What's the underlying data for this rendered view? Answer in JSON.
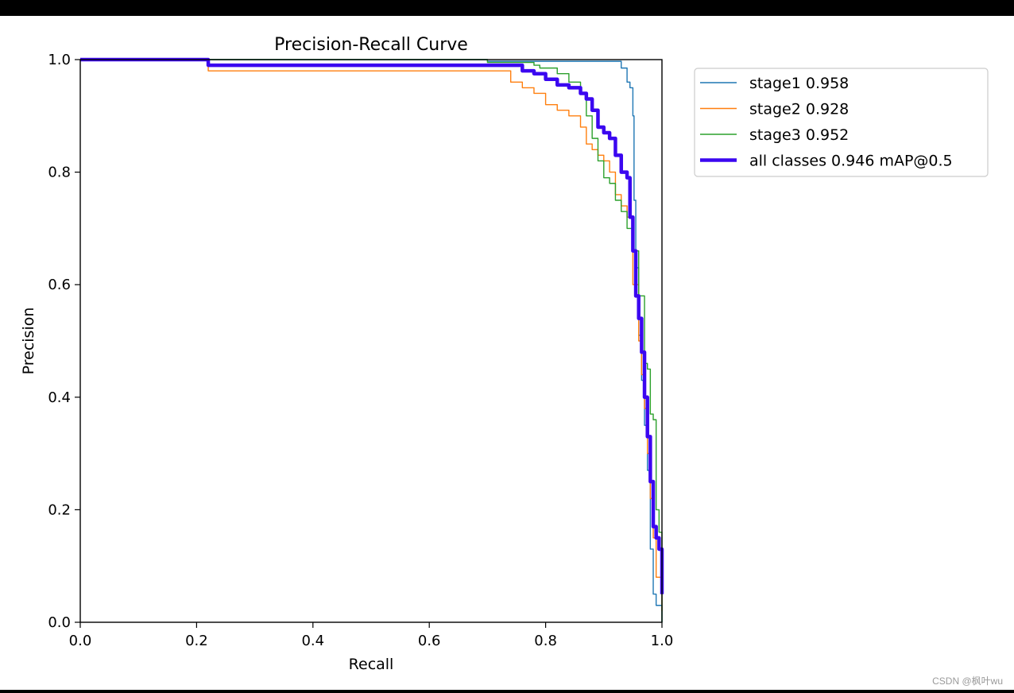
{
  "chart_data": {
    "type": "line",
    "title": "Precision-Recall Curve",
    "xlabel": "Recall",
    "ylabel": "Precision",
    "xlim": [
      0,
      1
    ],
    "ylim": [
      0,
      1
    ],
    "xticks": [
      "0.0",
      "0.2",
      "0.4",
      "0.6",
      "0.8",
      "1.0"
    ],
    "yticks": [
      "0.0",
      "0.2",
      "0.4",
      "0.6",
      "0.8",
      "1.0"
    ],
    "grid": false,
    "legend_position": "outside-top-right",
    "series": [
      {
        "name": "stage1 0.958",
        "color": "#1f77b4",
        "width": "thin",
        "x": [
          0,
          0.7,
          0.7,
          0.92,
          0.93,
          0.94,
          0.945,
          0.95,
          0.952,
          0.955,
          0.96,
          0.965,
          0.97,
          0.975,
          0.98,
          0.985,
          0.99,
          1.0
        ],
        "y": [
          1.0,
          1.0,
          0.997,
          0.997,
          0.985,
          0.96,
          0.95,
          0.9,
          0.75,
          0.63,
          0.51,
          0.43,
          0.35,
          0.27,
          0.13,
          0.05,
          0.03,
          0.0
        ]
      },
      {
        "name": "stage2 0.928",
        "color": "#ff7f0e",
        "width": "thin",
        "x": [
          0,
          0.22,
          0.22,
          0.74,
          0.74,
          0.76,
          0.78,
          0.8,
          0.82,
          0.84,
          0.86,
          0.87,
          0.88,
          0.89,
          0.9,
          0.91,
          0.92,
          0.93,
          0.94,
          0.95,
          0.96,
          0.965,
          0.97,
          0.975,
          0.98,
          0.985,
          0.99,
          1.0
        ],
        "y": [
          1.0,
          0.99,
          0.98,
          0.98,
          0.96,
          0.95,
          0.94,
          0.92,
          0.91,
          0.9,
          0.88,
          0.85,
          0.84,
          0.83,
          0.82,
          0.8,
          0.76,
          0.74,
          0.72,
          0.6,
          0.5,
          0.44,
          0.38,
          0.3,
          0.22,
          0.15,
          0.08,
          0.02
        ]
      },
      {
        "name": "stage3 0.952",
        "color": "#2ca02c",
        "width": "thin",
        "x": [
          0,
          0.7,
          0.7,
          0.78,
          0.79,
          0.82,
          0.84,
          0.86,
          0.87,
          0.88,
          0.89,
          0.9,
          0.91,
          0.92,
          0.93,
          0.94,
          0.95,
          0.96,
          0.97,
          0.975,
          0.98,
          0.985,
          0.99,
          0.995,
          1.0,
          1.0
        ],
        "y": [
          1.0,
          0.998,
          0.995,
          0.99,
          0.985,
          0.975,
          0.96,
          0.94,
          0.9,
          0.86,
          0.82,
          0.79,
          0.78,
          0.75,
          0.73,
          0.7,
          0.66,
          0.58,
          0.46,
          0.45,
          0.37,
          0.36,
          0.2,
          0.16,
          0.1,
          0.0
        ]
      },
      {
        "name": "all classes 0.946 mAP@0.5",
        "color": "#3b07f0",
        "width": "thick",
        "x": [
          0,
          0.22,
          0.22,
          0.74,
          0.76,
          0.78,
          0.8,
          0.82,
          0.84,
          0.86,
          0.87,
          0.88,
          0.89,
          0.9,
          0.91,
          0.92,
          0.93,
          0.94,
          0.945,
          0.95,
          0.955,
          0.96,
          0.965,
          0.97,
          0.975,
          0.98,
          0.985,
          0.99,
          0.995,
          1.0
        ],
        "y": [
          1.0,
          0.995,
          0.99,
          0.99,
          0.98,
          0.975,
          0.965,
          0.955,
          0.95,
          0.94,
          0.93,
          0.91,
          0.88,
          0.87,
          0.86,
          0.83,
          0.8,
          0.79,
          0.72,
          0.66,
          0.58,
          0.54,
          0.48,
          0.4,
          0.33,
          0.25,
          0.17,
          0.15,
          0.13,
          0.05
        ]
      }
    ]
  },
  "watermark": "CSDN @枫叶wu"
}
